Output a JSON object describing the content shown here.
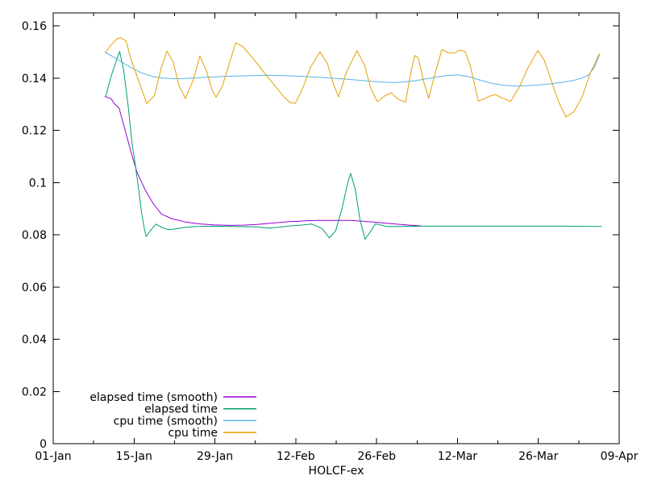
{
  "chart_data": {
    "type": "line",
    "title": "",
    "xlabel": "HOLCF-ex",
    "ylabel": "",
    "background_color": "#ffffff",
    "axis_color": "#000000",
    "grid": false,
    "x_axis": {
      "unit": "date",
      "major_tick_labels": [
        "01-Jan",
        "15-Jan",
        "29-Jan",
        "12-Feb",
        "26-Feb",
        "12-Mar",
        "26-Mar",
        "09-Apr"
      ],
      "major_tick_days": [
        0,
        14,
        28,
        42,
        56,
        70,
        84,
        98
      ],
      "minor_tick_days": [
        7,
        21,
        35,
        49,
        63,
        77,
        91
      ],
      "range_days": [
        0,
        98
      ]
    },
    "y_axis": {
      "tick_labels": [
        "0",
        "0.02",
        "0.04",
        "0.06",
        "0.08",
        "0.1",
        "0.12",
        "0.14",
        "0.16"
      ],
      "tick_values": [
        0,
        0.02,
        0.04,
        0.06,
        0.08,
        0.1,
        0.12,
        0.14,
        0.16
      ],
      "ylim": [
        0,
        0.165
      ]
    },
    "legend": {
      "position": "inside-bottom-left",
      "entries": [
        "elapsed time (smooth)",
        "elapsed time",
        "cpu time (smooth)",
        "cpu time"
      ]
    },
    "series": [
      {
        "name": "elapsed time (smooth)",
        "color": "#9400d3",
        "points": [
          [
            8.9,
            0.133
          ],
          [
            10,
            0.1322
          ],
          [
            10.6,
            0.1302
          ],
          [
            11.4,
            0.1285
          ],
          [
            12.4,
            0.1205
          ],
          [
            13.5,
            0.1115
          ],
          [
            14.5,
            0.104
          ],
          [
            15.9,
            0.0973
          ],
          [
            17.3,
            0.092
          ],
          [
            18.7,
            0.088
          ],
          [
            20.5,
            0.0862
          ],
          [
            22.9,
            0.0849
          ],
          [
            25.3,
            0.0842
          ],
          [
            27.8,
            0.0838
          ],
          [
            30.6,
            0.0836
          ],
          [
            33,
            0.0837
          ],
          [
            35.5,
            0.084
          ],
          [
            38,
            0.0845
          ],
          [
            40.6,
            0.085
          ],
          [
            42.5,
            0.0852
          ],
          [
            44,
            0.0854
          ],
          [
            46,
            0.0855
          ],
          [
            49,
            0.0855
          ],
          [
            51.5,
            0.0855
          ],
          [
            53.5,
            0.0852
          ],
          [
            56,
            0.0848
          ],
          [
            58.5,
            0.0843
          ],
          [
            61,
            0.0838
          ],
          [
            63.7,
            0.0834
          ]
        ]
      },
      {
        "name": "elapsed time",
        "color": "#009e73",
        "points": [
          [
            9.1,
            0.1331
          ],
          [
            10,
            0.1405
          ],
          [
            11,
            0.1472
          ],
          [
            11.5,
            0.1502
          ],
          [
            12.2,
            0.143
          ],
          [
            13,
            0.129
          ],
          [
            13.6,
            0.116
          ],
          [
            14.1,
            0.1085
          ],
          [
            14.8,
            0.0975
          ],
          [
            15.3,
            0.0885
          ],
          [
            15.8,
            0.082
          ],
          [
            16.1,
            0.0793
          ],
          [
            16.8,
            0.0815
          ],
          [
            17.8,
            0.0841
          ],
          [
            19,
            0.0826
          ],
          [
            20.1,
            0.0819
          ],
          [
            21.2,
            0.0823
          ],
          [
            22.9,
            0.0829
          ],
          [
            25,
            0.0832
          ],
          [
            28,
            0.0833
          ],
          [
            31,
            0.0832
          ],
          [
            33,
            0.0831
          ],
          [
            35,
            0.0831
          ],
          [
            37.3,
            0.0826
          ],
          [
            39,
            0.0829
          ],
          [
            41,
            0.0834
          ],
          [
            43.4,
            0.0838
          ],
          [
            44.8,
            0.0841
          ],
          [
            46,
            0.083
          ],
          [
            46.6,
            0.0823
          ],
          [
            47.8,
            0.0788
          ],
          [
            48.9,
            0.0815
          ],
          [
            50,
            0.09
          ],
          [
            51,
            0.1
          ],
          [
            51.5,
            0.1035
          ],
          [
            52.3,
            0.0975
          ],
          [
            53.1,
            0.086
          ],
          [
            54,
            0.0783
          ],
          [
            54.9,
            0.0812
          ],
          [
            55.8,
            0.0842
          ],
          [
            56.6,
            0.0838
          ],
          [
            57.8,
            0.0832
          ],
          [
            60,
            0.0832
          ],
          [
            64,
            0.0833
          ],
          [
            70,
            0.0833
          ],
          [
            76,
            0.0833
          ],
          [
            82,
            0.0833
          ],
          [
            88,
            0.0833
          ],
          [
            95,
            0.0832
          ]
        ]
      },
      {
        "name": "cpu time (smooth)",
        "color": "#56b4e9",
        "points": [
          [
            8.9,
            0.15
          ],
          [
            10.3,
            0.1483
          ],
          [
            11.7,
            0.1464
          ],
          [
            13.4,
            0.1441
          ],
          [
            15.2,
            0.1421
          ],
          [
            17.3,
            0.1406
          ],
          [
            19,
            0.14
          ],
          [
            21.5,
            0.1398
          ],
          [
            24,
            0.14
          ],
          [
            27,
            0.1404
          ],
          [
            30,
            0.1407
          ],
          [
            33,
            0.1409
          ],
          [
            37,
            0.1411
          ],
          [
            40,
            0.141
          ],
          [
            44,
            0.1406
          ],
          [
            47,
            0.1402
          ],
          [
            51,
            0.1396
          ],
          [
            54,
            0.139
          ],
          [
            57,
            0.1385
          ],
          [
            59,
            0.1383
          ],
          [
            61,
            0.1386
          ],
          [
            63,
            0.1391
          ],
          [
            66,
            0.1403
          ],
          [
            68,
            0.141
          ],
          [
            70,
            0.1413
          ],
          [
            72,
            0.1406
          ],
          [
            74,
            0.1392
          ],
          [
            76,
            0.138
          ],
          [
            78,
            0.1373
          ],
          [
            80,
            0.137
          ],
          [
            82,
            0.1371
          ],
          [
            84,
            0.1374
          ],
          [
            86,
            0.1378
          ],
          [
            88,
            0.1384
          ],
          [
            90,
            0.1391
          ],
          [
            91.5,
            0.14
          ],
          [
            92.7,
            0.1412
          ],
          [
            93.7,
            0.1442
          ],
          [
            94.6,
            0.149
          ]
        ]
      },
      {
        "name": "cpu time",
        "color": "#e69f00",
        "points": [
          [
            9,
            0.1497
          ],
          [
            10,
            0.1527
          ],
          [
            11,
            0.155
          ],
          [
            11.6,
            0.1556
          ],
          [
            12.6,
            0.1543
          ],
          [
            13.5,
            0.147
          ],
          [
            14.8,
            0.139
          ],
          [
            16.2,
            0.1303
          ],
          [
            17.5,
            0.1332
          ],
          [
            18.7,
            0.144
          ],
          [
            19.7,
            0.1504
          ],
          [
            20.8,
            0.146
          ],
          [
            21.8,
            0.137
          ],
          [
            22.9,
            0.1322
          ],
          [
            24.2,
            0.139
          ],
          [
            25.4,
            0.1485
          ],
          [
            26.5,
            0.143
          ],
          [
            27.5,
            0.1355
          ],
          [
            28.2,
            0.1327
          ],
          [
            29.3,
            0.137
          ],
          [
            30.4,
            0.145
          ],
          [
            31.6,
            0.1536
          ],
          [
            32.9,
            0.152
          ],
          [
            34.3,
            0.1483
          ],
          [
            35.7,
            0.1445
          ],
          [
            37.1,
            0.1405
          ],
          [
            38.5,
            0.1368
          ],
          [
            39.9,
            0.133
          ],
          [
            41,
            0.1307
          ],
          [
            41.9,
            0.1303
          ],
          [
            43.1,
            0.1355
          ],
          [
            44.5,
            0.144
          ],
          [
            46.2,
            0.1501
          ],
          [
            47.5,
            0.1455
          ],
          [
            48.4,
            0.1385
          ],
          [
            49.4,
            0.1328
          ],
          [
            50.8,
            0.1425
          ],
          [
            52.6,
            0.1505
          ],
          [
            53.9,
            0.145
          ],
          [
            55,
            0.136
          ],
          [
            56.1,
            0.131
          ],
          [
            57.4,
            0.1332
          ],
          [
            58.5,
            0.1344
          ],
          [
            59.7,
            0.132
          ],
          [
            61,
            0.1308
          ],
          [
            62,
            0.143
          ],
          [
            62.6,
            0.1487
          ],
          [
            63.2,
            0.1478
          ],
          [
            64.1,
            0.139
          ],
          [
            65,
            0.1323
          ],
          [
            66.2,
            0.1425
          ],
          [
            67.3,
            0.151
          ],
          [
            68.4,
            0.1497
          ],
          [
            69.4,
            0.1496
          ],
          [
            70.4,
            0.1508
          ],
          [
            71.3,
            0.1502
          ],
          [
            72.2,
            0.145
          ],
          [
            73.6,
            0.1313
          ],
          [
            74.5,
            0.132
          ],
          [
            75.7,
            0.1332
          ],
          [
            76.6,
            0.1337
          ],
          [
            77.6,
            0.1325
          ],
          [
            79.2,
            0.1311
          ],
          [
            80.8,
            0.137
          ],
          [
            82.2,
            0.144
          ],
          [
            83.9,
            0.1506
          ],
          [
            85,
            0.147
          ],
          [
            86.4,
            0.138
          ],
          [
            87.5,
            0.131
          ],
          [
            88.8,
            0.1251
          ],
          [
            90.2,
            0.1272
          ],
          [
            91.6,
            0.133
          ],
          [
            93,
            0.142
          ],
          [
            94.6,
            0.1495
          ]
        ]
      }
    ]
  }
}
